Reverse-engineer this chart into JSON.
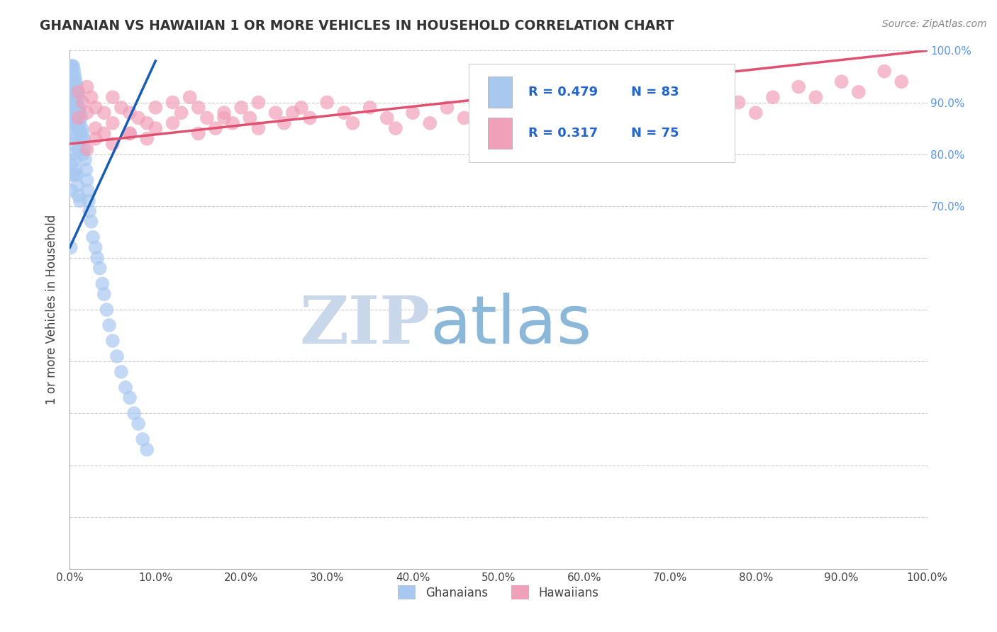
{
  "title": "GHANAIAN VS HAWAIIAN 1 OR MORE VEHICLES IN HOUSEHOLD CORRELATION CHART",
  "source": "Source: ZipAtlas.com",
  "ylabel": "1 or more Vehicles in Household",
  "xlim": [
    0.0,
    1.0
  ],
  "ylim": [
    0.0,
    1.0
  ],
  "xticks": [
    0.0,
    0.1,
    0.2,
    0.3,
    0.4,
    0.5,
    0.6,
    0.7,
    0.8,
    0.9,
    1.0
  ],
  "ghanaian_color": "#a8c8f0",
  "hawaiian_color": "#f0a0b8",
  "ghanaian_line_color": "#1a5cb5",
  "hawaiian_line_color": "#e05070",
  "legend_R1": "0.479",
  "legend_N1": "83",
  "legend_R2": "0.317",
  "legend_N2": "75",
  "legend_label1": "Ghanaians",
  "legend_label2": "Hawaiians",
  "watermark_zip": "ZIP",
  "watermark_atlas": "atlas",
  "watermark_color_zip": "#c8d8ea",
  "watermark_color_atlas": "#8bb8d8",
  "right_ytick_labels": [
    "100.0%",
    "90.0%",
    "80.0%",
    "70.0%"
  ],
  "right_ytick_positions": [
    1.0,
    0.9,
    0.8,
    0.7
  ],
  "ghanaian_x": [
    0.001,
    0.001,
    0.002,
    0.002,
    0.002,
    0.003,
    0.003,
    0.003,
    0.003,
    0.004,
    0.004,
    0.004,
    0.004,
    0.005,
    0.005,
    0.005,
    0.005,
    0.005,
    0.006,
    0.006,
    0.006,
    0.007,
    0.007,
    0.007,
    0.007,
    0.008,
    0.008,
    0.008,
    0.009,
    0.009,
    0.009,
    0.01,
    0.01,
    0.01,
    0.01,
    0.011,
    0.011,
    0.012,
    0.012,
    0.013,
    0.013,
    0.014,
    0.015,
    0.015,
    0.016,
    0.017,
    0.018,
    0.019,
    0.02,
    0.021,
    0.022,
    0.023,
    0.025,
    0.027,
    0.03,
    0.032,
    0.035,
    0.038,
    0.04,
    0.043,
    0.046,
    0.05,
    0.055,
    0.06,
    0.065,
    0.07,
    0.075,
    0.08,
    0.085,
    0.09,
    0.001,
    0.002,
    0.002,
    0.003,
    0.003,
    0.004,
    0.005,
    0.006,
    0.007,
    0.008,
    0.009,
    0.01,
    0.012
  ],
  "ghanaian_y": [
    0.97,
    0.93,
    0.96,
    0.92,
    0.88,
    0.97,
    0.95,
    0.92,
    0.88,
    0.97,
    0.94,
    0.9,
    0.86,
    0.96,
    0.93,
    0.9,
    0.87,
    0.83,
    0.95,
    0.92,
    0.88,
    0.94,
    0.91,
    0.88,
    0.84,
    0.93,
    0.9,
    0.86,
    0.92,
    0.89,
    0.85,
    0.91,
    0.88,
    0.85,
    0.81,
    0.89,
    0.86,
    0.88,
    0.84,
    0.87,
    0.83,
    0.85,
    0.84,
    0.8,
    0.83,
    0.81,
    0.79,
    0.77,
    0.75,
    0.73,
    0.71,
    0.69,
    0.67,
    0.64,
    0.62,
    0.6,
    0.58,
    0.55,
    0.53,
    0.5,
    0.47,
    0.44,
    0.41,
    0.38,
    0.35,
    0.33,
    0.3,
    0.28,
    0.25,
    0.23,
    0.62,
    0.78,
    0.73,
    0.82,
    0.76,
    0.8,
    0.76,
    0.79,
    0.77,
    0.76,
    0.74,
    0.72,
    0.71
  ],
  "hawaiian_x": [
    0.01,
    0.01,
    0.015,
    0.02,
    0.02,
    0.025,
    0.03,
    0.03,
    0.04,
    0.04,
    0.05,
    0.05,
    0.06,
    0.07,
    0.07,
    0.08,
    0.09,
    0.1,
    0.1,
    0.12,
    0.13,
    0.14,
    0.15,
    0.16,
    0.17,
    0.18,
    0.19,
    0.2,
    0.21,
    0.22,
    0.24,
    0.25,
    0.27,
    0.28,
    0.3,
    0.32,
    0.33,
    0.35,
    0.37,
    0.38,
    0.4,
    0.42,
    0.44,
    0.46,
    0.48,
    0.5,
    0.52,
    0.55,
    0.57,
    0.6,
    0.62,
    0.65,
    0.68,
    0.7,
    0.72,
    0.75,
    0.78,
    0.8,
    0.82,
    0.85,
    0.87,
    0.9,
    0.92,
    0.95,
    0.97,
    0.02,
    0.03,
    0.05,
    0.07,
    0.09,
    0.12,
    0.15,
    0.18,
    0.22,
    0.26
  ],
  "hawaiian_y": [
    0.92,
    0.87,
    0.9,
    0.93,
    0.88,
    0.91,
    0.89,
    0.85,
    0.88,
    0.84,
    0.91,
    0.86,
    0.89,
    0.88,
    0.84,
    0.87,
    0.86,
    0.89,
    0.85,
    0.9,
    0.88,
    0.91,
    0.89,
    0.87,
    0.85,
    0.88,
    0.86,
    0.89,
    0.87,
    0.9,
    0.88,
    0.86,
    0.89,
    0.87,
    0.9,
    0.88,
    0.86,
    0.89,
    0.87,
    0.85,
    0.88,
    0.86,
    0.89,
    0.87,
    0.9,
    0.88,
    0.86,
    0.89,
    0.87,
    0.9,
    0.88,
    0.91,
    0.89,
    0.87,
    0.9,
    0.92,
    0.9,
    0.88,
    0.91,
    0.93,
    0.91,
    0.94,
    0.92,
    0.96,
    0.94,
    0.81,
    0.83,
    0.82,
    0.84,
    0.83,
    0.86,
    0.84,
    0.87,
    0.85,
    0.88
  ],
  "ghanaian_line_x": [
    0.0,
    0.1
  ],
  "ghanaian_line_y": [
    0.62,
    0.98
  ],
  "hawaiian_line_x": [
    0.0,
    1.0
  ],
  "hawaiian_line_y": [
    0.82,
    1.0
  ]
}
